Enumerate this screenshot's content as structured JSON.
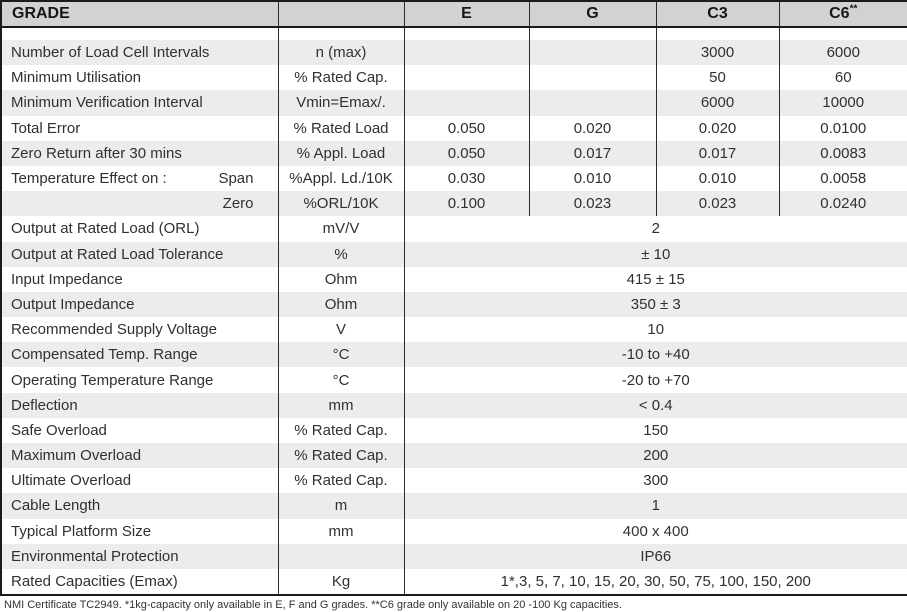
{
  "colors": {
    "header_bg": "#d2d2d2",
    "row_stripe": "#ececec",
    "border": "#1a1a1a"
  },
  "table": {
    "header": {
      "grade_label": "GRADE",
      "unit_col_label": "",
      "col_e": "E",
      "col_g": "G",
      "col_c3": "C3",
      "col_c6_base": "C6",
      "col_c6_sup": "**"
    },
    "rows": [
      {
        "label": "Number of Load Cell Intervals",
        "unit": "n (max)",
        "values": [
          "",
          "",
          "3000",
          "6000"
        ]
      },
      {
        "label": "Minimum Utilisation",
        "unit": "% Rated Cap.",
        "values": [
          "",
          "",
          "50",
          "60"
        ]
      },
      {
        "label": "Minimum Verification Interval",
        "unit": "Vmin=Emax/.",
        "values": [
          "",
          "",
          "6000",
          "10000"
        ]
      },
      {
        "label": "Total Error",
        "unit": "% Rated Load",
        "values": [
          "0.050",
          "0.020",
          "0.020",
          "0.0100"
        ]
      },
      {
        "label": "Zero Return after 30 mins",
        "unit": "% Appl. Load",
        "values": [
          "0.050",
          "0.017",
          "0.017",
          "0.0083"
        ]
      },
      {
        "label": "Temperature Effect on :",
        "label_right": "Span",
        "unit": "%Appl. Ld./10K",
        "values": [
          "0.030",
          "0.010",
          "0.010",
          "0.0058"
        ]
      },
      {
        "label": "",
        "label_right": "Zero",
        "unit": "%ORL/10K",
        "values": [
          "0.100",
          "0.023",
          "0.023",
          "0.0240"
        ]
      },
      {
        "label": "Output at Rated Load (ORL)",
        "unit": "mV/V",
        "span": "2"
      },
      {
        "label": "Output at Rated Load Tolerance",
        "unit": "%",
        "span": "± 10"
      },
      {
        "label": "Input Impedance",
        "unit": "Ohm",
        "span": "415 ± 15"
      },
      {
        "label": "Output Impedance",
        "unit": "Ohm",
        "span": "350 ± 3"
      },
      {
        "label": "Recommended Supply Voltage",
        "unit": "V",
        "span": "10"
      },
      {
        "label": "Compensated Temp. Range",
        "unit": "°C",
        "span": "-10  to +40"
      },
      {
        "label": "Operating Temperature Range",
        "unit": "°C",
        "span": "-20  to +70"
      },
      {
        "label": "Deflection",
        "unit": "mm",
        "span": "< 0.4"
      },
      {
        "label": "Safe Overload",
        "unit": "% Rated Cap.",
        "span": "150"
      },
      {
        "label": "Maximum Overload",
        "unit": "% Rated Cap.",
        "span": "200"
      },
      {
        "label": "Ultimate Overload",
        "unit": "% Rated Cap.",
        "span": "300"
      },
      {
        "label": "Cable Length",
        "unit": "m",
        "span": "1"
      },
      {
        "label": "Typical Platform Size",
        "unit": "mm",
        "span": "400 x 400"
      },
      {
        "label": "Environmental Protection",
        "unit": "",
        "span": "IP66"
      },
      {
        "label": "Rated Capacities (Emax)",
        "unit": "Kg",
        "span": "1*,3, 5, 7, 10, 15, 20, 30, 50, 75, 100, 150, 200"
      }
    ]
  },
  "footnote": "NMI Certificate TC2949. *1kg-capacity only available in E, F and G grades. **C6 grade only available on 20 -100 Kg capacities."
}
